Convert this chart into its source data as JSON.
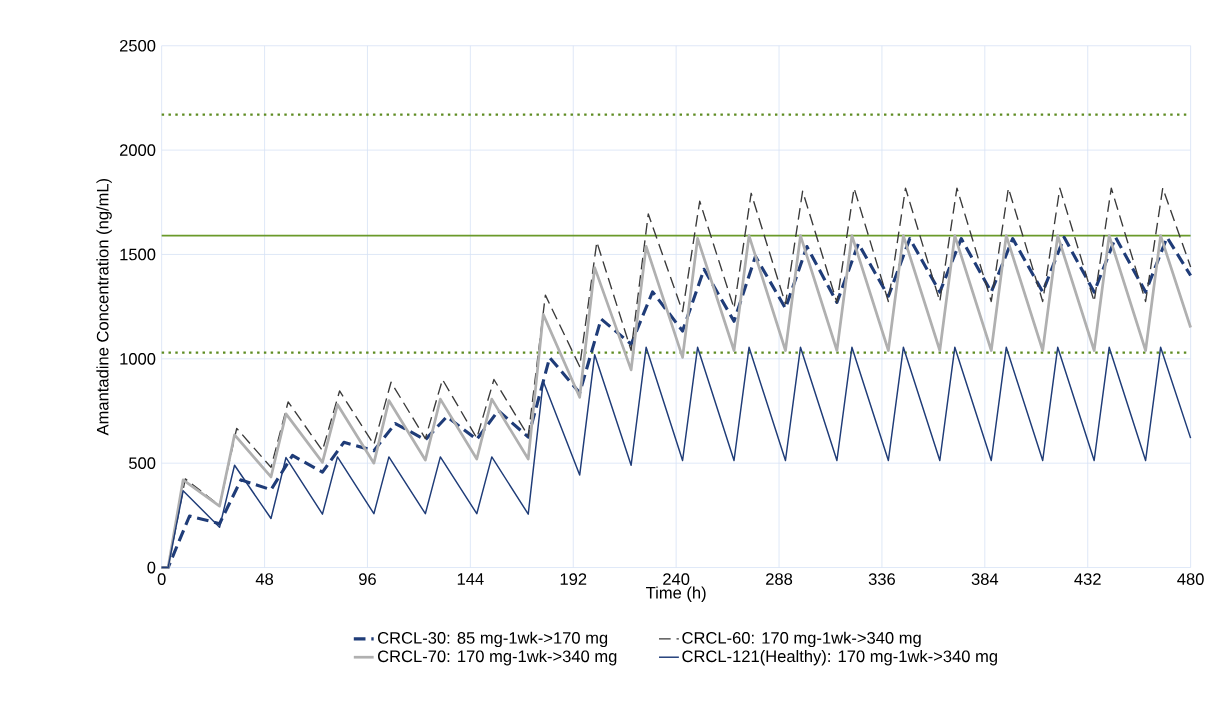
{
  "chart_data": {
    "type": "line",
    "xlabel": "Time (h)",
    "ylabel": "Amantadine Concentration (ng/mL)",
    "xlim": [
      0,
      480
    ],
    "ylim": [
      0,
      2500
    ],
    "xticks": [
      0,
      48,
      96,
      144,
      192,
      240,
      288,
      336,
      384,
      432,
      480
    ],
    "yticks": [
      0,
      500,
      1000,
      1500,
      2000,
      2500
    ],
    "grid": true,
    "legend": "bottom",
    "marker": "none",
    "ref_lines": [
      {
        "axis": "y",
        "value": 2170,
        "color": "#5e8c22",
        "line_style": "dotted"
      },
      {
        "axis": "y",
        "value": 1590,
        "color": "#6a9a2a",
        "line_style": "solid"
      },
      {
        "axis": "y",
        "value": 1030,
        "color": "#5e8c22",
        "line_style": "dotted"
      }
    ],
    "series": [
      {
        "name": "CRCL-30:  85 mg-1wk->170 mg",
        "color": "#1f3c78",
        "line_style": "dashed",
        "x": [
          0,
          3,
          13,
          27,
          37,
          51,
          61,
          75,
          85,
          99,
          109,
          123,
          133,
          147,
          157,
          171,
          181,
          195,
          205,
          219,
          229,
          243,
          253,
          267,
          277,
          291,
          301,
          315,
          325,
          339,
          349,
          363,
          373,
          387,
          397,
          411,
          421,
          435,
          445,
          459,
          469,
          480
        ],
        "values": [
          0,
          0,
          247,
          210,
          420,
          373,
          537,
          457,
          600,
          560,
          690,
          612,
          723,
          614,
          752,
          625,
          1006,
          837,
          1191,
          1070,
          1321,
          1133,
          1429,
          1180,
          1491,
          1242,
          1538,
          1270,
          1552,
          1300,
          1576,
          1320,
          1576,
          1320,
          1576,
          1320,
          1582,
          1320,
          1582,
          1320,
          1582,
          1399
        ]
      },
      {
        "name": "CRCL-60: 170 mg-1wk->340 mg",
        "color": "#3a3a3a",
        "line_style": "dashed",
        "x": [
          0,
          3,
          11,
          27,
          35,
          51,
          59,
          75,
          83,
          99,
          107,
          123,
          131,
          147,
          155,
          171,
          179,
          195,
          203,
          219,
          227,
          243,
          251,
          267,
          275,
          291,
          299,
          315,
          323,
          339,
          347,
          363,
          371,
          387,
          395,
          411,
          419,
          435,
          443,
          459,
          467,
          480
        ],
        "values": [
          0,
          0,
          425,
          297,
          667,
          480,
          794,
          560,
          846,
          589,
          888,
          618,
          901,
          620,
          901,
          630,
          1305,
          963,
          1560,
          1040,
          1694,
          1226,
          1755,
          1242,
          1793,
          1263,
          1803,
          1270,
          1818,
          1275,
          1818,
          1275,
          1818,
          1275,
          1818,
          1275,
          1818,
          1275,
          1818,
          1275,
          1818,
          1440
        ]
      },
      {
        "name": "CRCL-70: 170 mg-1wk->340 mg",
        "color": "#b0b0b0",
        "line_style": "solid",
        "x": [
          0,
          3,
          10,
          27,
          34,
          51,
          58,
          75,
          82,
          99,
          106,
          123,
          130,
          147,
          154,
          171,
          178,
          195,
          202,
          219,
          226,
          243,
          250,
          267,
          274,
          291,
          298,
          315,
          322,
          339,
          346,
          363,
          370,
          387,
          394,
          411,
          418,
          435,
          442,
          459,
          466,
          480
        ],
        "values": [
          0,
          0,
          420,
          294,
          636,
          434,
          736,
          504,
          781,
          500,
          800,
          515,
          807,
          520,
          807,
          520,
          1213,
          816,
          1437,
          947,
          1539,
          1007,
          1577,
          1040,
          1590,
          1040,
          1590,
          1040,
          1590,
          1040,
          1590,
          1040,
          1590,
          1040,
          1590,
          1040,
          1590,
          1040,
          1590,
          1040,
          1590,
          1150
        ]
      },
      {
        "name": "CRCL-121(Healthy): 170 mg-1wk->340 mg",
        "color": "#1f3c78",
        "line_style": "solid",
        "x": [
          0,
          3,
          10,
          27,
          34,
          51,
          58,
          75,
          82,
          99,
          106,
          123,
          130,
          147,
          154,
          171,
          178,
          195,
          202,
          219,
          226,
          243,
          250,
          267,
          274,
          291,
          298,
          315,
          322,
          339,
          346,
          363,
          370,
          387,
          394,
          411,
          418,
          435,
          442,
          459,
          466,
          480
        ],
        "values": [
          0,
          0,
          368,
          193,
          490,
          235,
          527,
          256,
          530,
          258,
          530,
          258,
          530,
          258,
          530,
          256,
          893,
          443,
          1020,
          490,
          1055,
          513,
          1055,
          513,
          1055,
          513,
          1055,
          513,
          1055,
          513,
          1055,
          513,
          1055,
          513,
          1055,
          513,
          1055,
          513,
          1055,
          513,
          1055,
          620
        ]
      }
    ]
  }
}
